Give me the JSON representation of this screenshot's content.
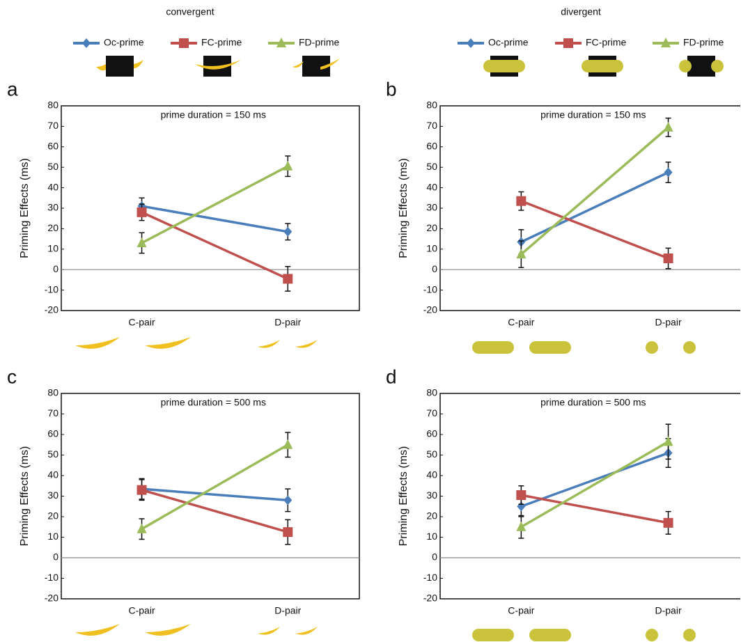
{
  "column_titles": [
    "convergent",
    "divergent"
  ],
  "chart_data": [
    {
      "type": "line",
      "panel_label": "a",
      "title": "prime duration = 150 ms",
      "ylabel": "Priming Effects (ms)",
      "categories": [
        "C-pair",
        "D-pair"
      ],
      "ylim": [
        -20,
        80
      ],
      "yticks": [
        -20,
        -10,
        0,
        10,
        20,
        30,
        40,
        50,
        60,
        70,
        80
      ],
      "series": [
        {
          "name": "Oc-prime",
          "color": "#4a7ebb",
          "marker": "diamond",
          "values": [
            31,
            18.5
          ],
          "errors": [
            4,
            4
          ]
        },
        {
          "name": "FC-prime",
          "color": "#c0504d",
          "marker": "square",
          "values": [
            28,
            -4.5
          ],
          "errors": [
            4,
            6
          ]
        },
        {
          "name": "FD-prime",
          "color": "#9bbb59",
          "marker": "triangle",
          "values": [
            13,
            50.5
          ],
          "errors": [
            5,
            5
          ]
        }
      ]
    },
    {
      "type": "line",
      "panel_label": "b",
      "title": "prime duration = 150 ms",
      "ylabel": "Priming Effects (ms)",
      "categories": [
        "C-pair",
        "D-pair"
      ],
      "ylim": [
        -20,
        80
      ],
      "yticks": [
        -20,
        -10,
        0,
        10,
        20,
        30,
        40,
        50,
        60,
        70,
        80
      ],
      "series": [
        {
          "name": "Oc-prime",
          "color": "#4a7ebb",
          "marker": "diamond",
          "values": [
            13.5,
            47.5
          ],
          "errors": [
            6,
            5
          ]
        },
        {
          "name": "FC-prime",
          "color": "#c0504d",
          "marker": "square",
          "values": [
            33.5,
            5.5
          ],
          "errors": [
            4.5,
            5
          ]
        },
        {
          "name": "FD-prime",
          "color": "#9bbb59",
          "marker": "triangle",
          "values": [
            7.5,
            69.5
          ],
          "errors": [
            6.5,
            4.5
          ]
        }
      ]
    },
    {
      "type": "line",
      "panel_label": "c",
      "title": "prime duration = 500 ms",
      "ylabel": "Priming Effects (ms)",
      "categories": [
        "C-pair",
        "D-pair"
      ],
      "ylim": [
        -20,
        80
      ],
      "yticks": [
        -20,
        -10,
        0,
        10,
        20,
        30,
        40,
        50,
        60,
        70,
        80
      ],
      "series": [
        {
          "name": "Oc-prime",
          "color": "#4a7ebb",
          "marker": "diamond",
          "values": [
            33.5,
            28
          ],
          "errors": [
            5,
            5.5
          ]
        },
        {
          "name": "FC-prime",
          "color": "#c0504d",
          "marker": "square",
          "values": [
            33,
            12.5
          ],
          "errors": [
            5,
            6
          ]
        },
        {
          "name": "FD-prime",
          "color": "#9bbb59",
          "marker": "triangle",
          "values": [
            14,
            55
          ],
          "errors": [
            5,
            6
          ]
        }
      ]
    },
    {
      "type": "line",
      "panel_label": "d",
      "title": "prime duration = 500 ms",
      "ylabel": "Priming Effects (ms)",
      "categories": [
        "C-pair",
        "D-pair"
      ],
      "ylim": [
        -20,
        80
      ],
      "yticks": [
        -20,
        -10,
        0,
        10,
        20,
        30,
        40,
        50,
        60,
        70,
        80
      ],
      "series": [
        {
          "name": "Oc-prime",
          "color": "#4a7ebb",
          "marker": "diamond",
          "values": [
            25,
            51
          ],
          "errors": [
            5,
            7
          ]
        },
        {
          "name": "FC-prime",
          "color": "#c0504d",
          "marker": "square",
          "values": [
            30.5,
            17
          ],
          "errors": [
            4.5,
            5.5
          ]
        },
        {
          "name": "FD-prime",
          "color": "#9bbb59",
          "marker": "triangle",
          "values": [
            15,
            56.5
          ],
          "errors": [
            5.5,
            8.5
          ]
        }
      ]
    }
  ]
}
